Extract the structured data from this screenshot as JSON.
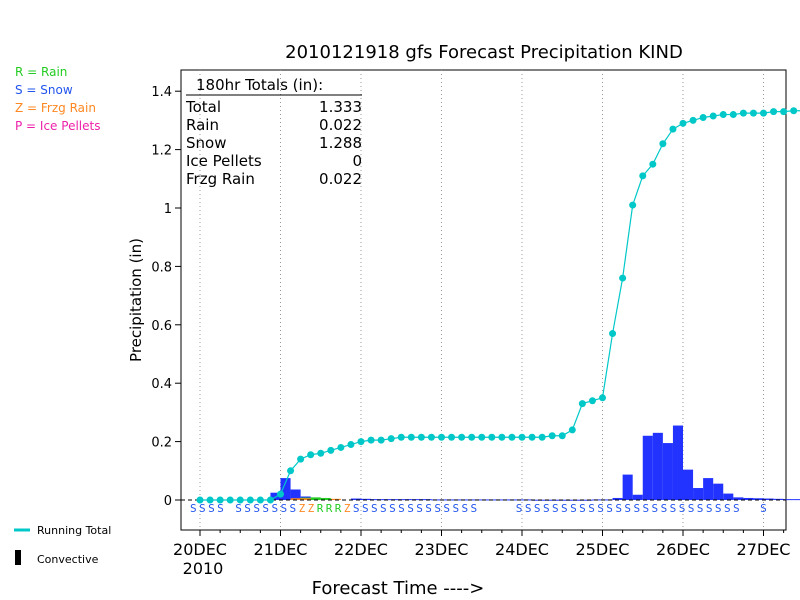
{
  "chart_data": {
    "type": "bar",
    "title": "2010121918 gfs Forecast Precipitation KIND",
    "xlabel": "Forecast Time ---->",
    "ylabel": "Precipitation (in)",
    "ylim": [
      -0.1,
      1.45
    ],
    "yticks": [
      "0",
      "0.2",
      "0.4",
      "0.6",
      "0.8",
      "1",
      "1.2",
      "1.4"
    ],
    "x_tick_labels": [
      "20DEC",
      "21DEC",
      "22DEC",
      "23DEC",
      "24DEC",
      "25DEC",
      "26DEC",
      "27DEC"
    ],
    "x_year_label": "2010",
    "grid": "vertical dotted at day boundaries",
    "totals_box": {
      "title": "180hr Totals (in):",
      "rows": [
        {
          "label": "Total",
          "value": "1.333"
        },
        {
          "label": "Rain",
          "value": "0.022"
        },
        {
          "label": "Snow",
          "value": "1.288"
        },
        {
          "label": "Ice Pellets",
          "value": "0"
        },
        {
          "label": "Frzg Rain",
          "value": "0.022"
        }
      ]
    },
    "type_legend": [
      {
        "text": "R = Rain",
        "color": "#22cc22"
      },
      {
        "text": "S = Snow",
        "color": "#2255ee"
      },
      {
        "text": "Z = Frzg Rain",
        "color": "#ff8822"
      },
      {
        "text": "P = Ice Pellets",
        "color": "#ee22aa"
      }
    ],
    "line_legend": [
      {
        "text": "Running Total",
        "color": "#00c8c8"
      },
      {
        "text": "Convective",
        "color": "#000000"
      }
    ],
    "colors": {
      "snow": "#2233ff",
      "rain": "#22cc22",
      "frzg": "#ff8822",
      "total": "#00c8c8",
      "ptype_snow": "#2255ee",
      "ptype_rain": "#22cc22",
      "ptype_frzg": "#ff8822"
    },
    "series": [
      {
        "name": "Snow",
        "x_hours": [
          48,
          51,
          54,
          57,
          60,
          63,
          66,
          69,
          72,
          75,
          78,
          81,
          84,
          87,
          90,
          93,
          96,
          99,
          102,
          105,
          108,
          111,
          114,
          117,
          120,
          123,
          126,
          129,
          132,
          135,
          138,
          141,
          144,
          147,
          150,
          153,
          156,
          159,
          162,
          165,
          168,
          171,
          174,
          177,
          180
        ],
        "values": [
          0.005,
          0.004,
          0.003,
          0.003,
          0.003,
          0.003,
          0.003,
          0.003,
          0.002,
          0.002,
          0.002,
          0.002,
          0.002,
          0.002,
          0.002,
          0.002,
          0.002,
          0.002,
          0.001,
          0.001,
          0.001,
          0.001,
          0.001,
          0.001,
          0.002,
          0.002,
          0.007,
          0.087,
          0.018,
          0.22,
          0.23,
          0.195,
          0.255,
          0.104,
          0.041,
          0.075,
          0.056,
          0.022,
          0.009,
          0.007,
          0.006,
          0.005,
          0.004,
          0.003,
          0.003
        ]
      },
      {
        "name": "Running Total",
        "x_hours": [
          0,
          3,
          6,
          9,
          12,
          15,
          18,
          21,
          24,
          27,
          30,
          33,
          36,
          39,
          42,
          45,
          48,
          51,
          54,
          57,
          60,
          63,
          66,
          69,
          72,
          75,
          78,
          81,
          84,
          87,
          90,
          93,
          96,
          99,
          102,
          105,
          108,
          111,
          114,
          117,
          120,
          123,
          126,
          129,
          132,
          135,
          138,
          141,
          144,
          147,
          150,
          153,
          156,
          159,
          162,
          165,
          168,
          171,
          174,
          177,
          180
        ],
        "values": [
          0.0,
          0.0,
          0.0,
          0.0,
          0.0,
          0.0,
          0.0,
          0.0,
          0.02,
          0.1,
          0.14,
          0.155,
          0.16,
          0.17,
          0.18,
          0.19,
          0.2,
          0.205,
          0.205,
          0.21,
          0.215,
          0.215,
          0.215,
          0.215,
          0.215,
          0.215,
          0.215,
          0.215,
          0.215,
          0.215,
          0.215,
          0.215,
          0.215,
          0.215,
          0.215,
          0.22,
          0.22,
          0.24,
          0.33,
          0.34,
          0.35,
          0.57,
          0.76,
          1.01,
          1.11,
          1.15,
          1.22,
          1.27,
          1.29,
          1.3,
          1.31,
          1.315,
          1.32,
          1.32,
          1.325,
          1.325,
          1.325,
          1.33,
          1.33,
          1.333,
          1.333
        ]
      }
    ],
    "rain_bars": {
      "x_hours": [
        33,
        36,
        39
      ],
      "values": [
        0.008,
        0.009,
        0.007
      ]
    },
    "snow_bars_early": {
      "x_hours": [
        24,
        27,
        30,
        33,
        36
      ],
      "values": [
        0.025,
        0.075,
        0.036,
        0.012,
        0.006
      ]
    },
    "frzg_bars": {
      "x_hours": [
        30,
        33,
        42
      ],
      "values": [
        0.006,
        0.006,
        0.004
      ]
    },
    "ptype_labels": [
      "S",
      "S",
      "S",
      "S",
      "",
      "S",
      "S",
      "S",
      "S",
      "S",
      "S",
      "S",
      "Z",
      "Z",
      "R",
      "R",
      "R",
      "Z",
      "S",
      "S",
      "S",
      "S",
      "S",
      "S",
      "S",
      "S",
      "S",
      "S",
      "S",
      "S",
      "S",
      "S",
      "",
      "",
      "",
      "",
      "S",
      "S",
      "S",
      "S",
      "S",
      "S",
      "S",
      "S",
      "S",
      "S",
      "S",
      "S",
      "S",
      "S",
      "S",
      "S",
      "S",
      "S",
      "S",
      "S",
      "S",
      "S",
      "S",
      "S",
      "S",
      "",
      "",
      "S",
      "",
      ""
    ]
  }
}
